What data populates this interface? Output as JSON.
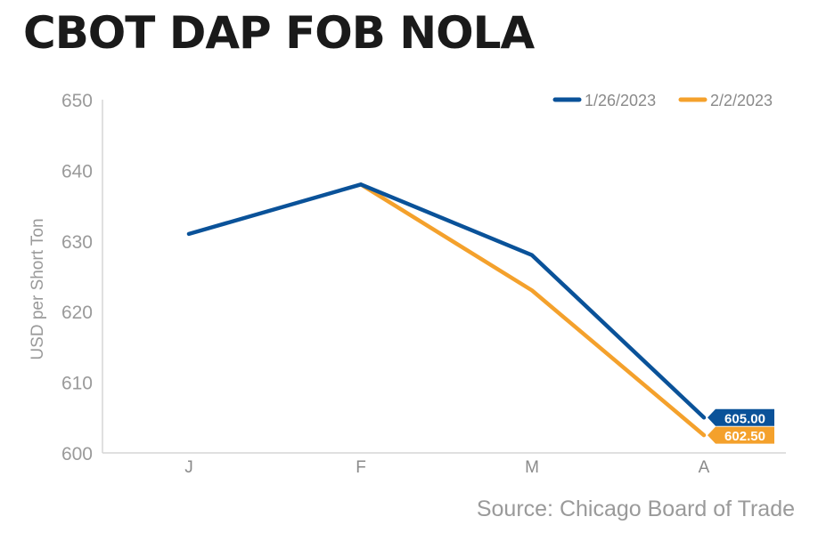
{
  "title": "CBOT DAP FOB NOLA",
  "source": "Source: Chicago Board of Trade",
  "chart_data": {
    "type": "line",
    "title": "CBOT DAP FOB NOLA",
    "xlabel": "",
    "ylabel": "USD per Short Ton",
    "categories": [
      "J",
      "F",
      "M",
      "A"
    ],
    "ylim": [
      600,
      650
    ],
    "yticks": [
      600,
      610,
      620,
      630,
      640,
      650
    ],
    "grid": false,
    "legend_position": "top-right",
    "series": [
      {
        "name": "1/26/2023",
        "color": "#0a5299",
        "values": [
          631,
          638,
          628,
          605
        ],
        "end_label": "605.00"
      },
      {
        "name": "2/2/2023",
        "color": "#f4a12c",
        "values": [
          null,
          638,
          623,
          602.5
        ],
        "end_label": "602.50"
      }
    ]
  }
}
